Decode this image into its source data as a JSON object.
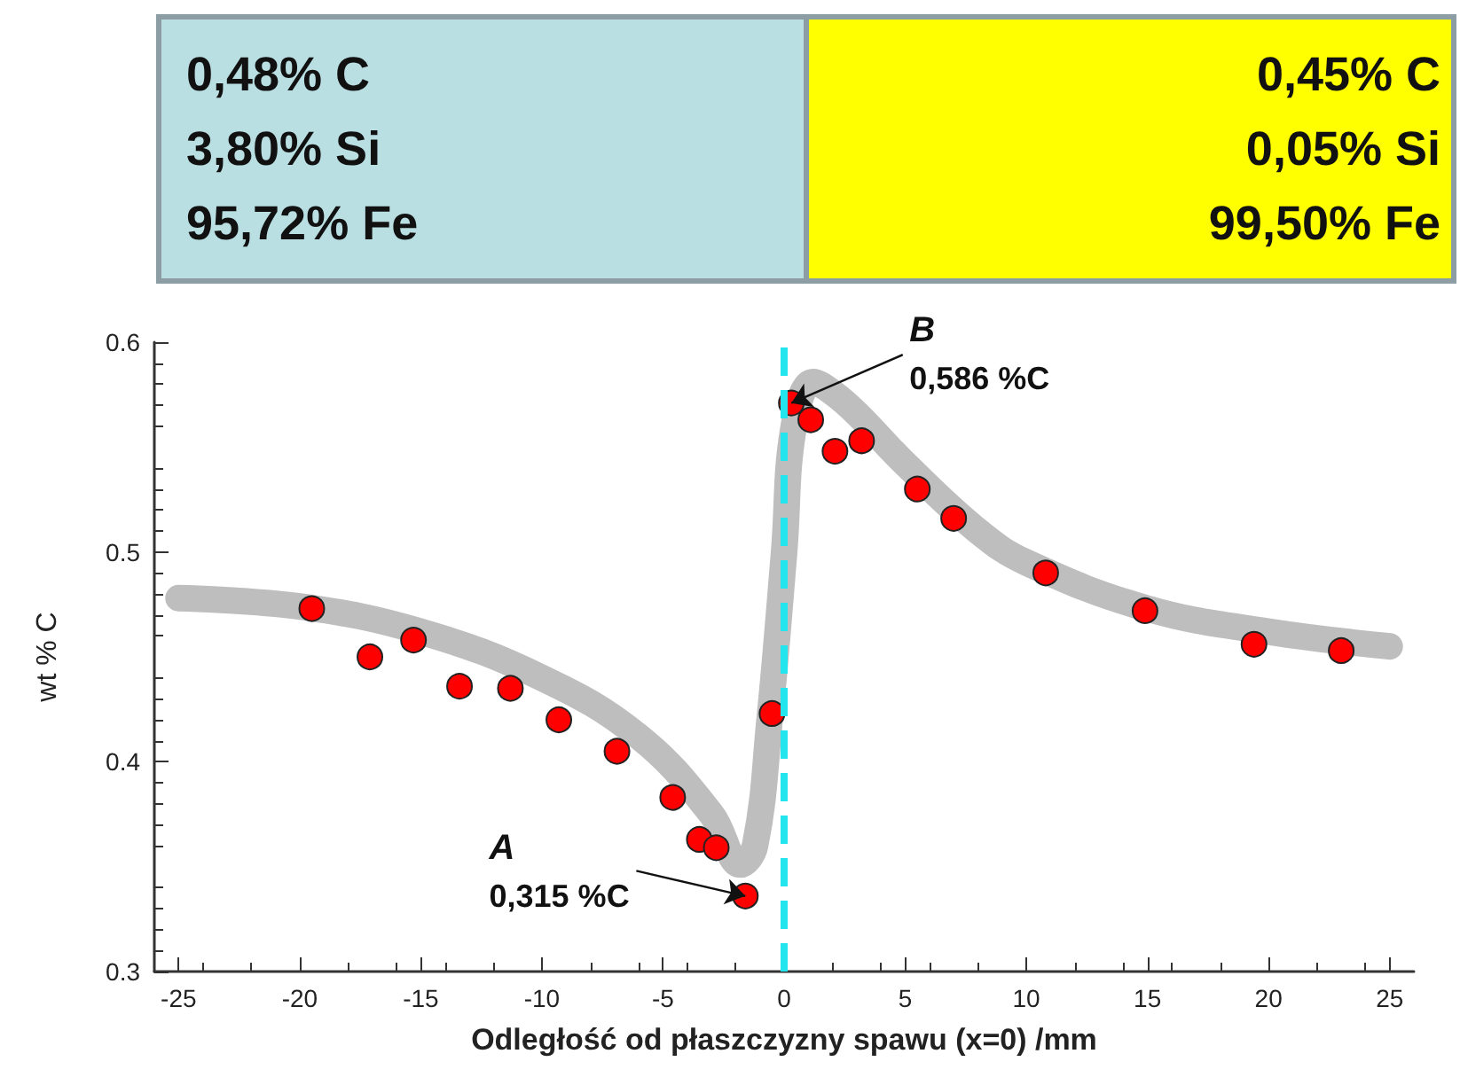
{
  "chart_data": [
    {
      "type": "other",
      "colors": [
        "#b9dfe3",
        "#ffff00"
      ],
      "annotations": [
        "0,48% C\n3,80% Si\n95,72% Fe",
        "0,45% C\n0,05% Si\n99,50% Fe"
      ]
    },
    {
      "type": "scatter",
      "xlabel": "Odległość od płaszczyzny spawu (x=0) /mm",
      "ylabel": "wt % C",
      "xlim": [
        -26,
        26
      ],
      "xticks": [
        -25,
        -20,
        -15,
        -10,
        -5,
        0,
        5,
        10,
        15,
        20,
        25
      ],
      "ylim": [
        0.3,
        0.6
      ],
      "yticks": [
        0.3,
        0.4,
        0.5,
        0.6
      ],
      "grid": false,
      "series": [
        {
          "type": "line",
          "color": "#bebebe",
          "marker": "none",
          "x": [
            -25,
            -20,
            -15,
            -10,
            -6,
            -3,
            -1.8,
            -1.2,
            -0.6,
            0,
            0.4,
            1.2,
            2,
            3,
            5,
            8,
            10,
            15,
            20,
            25
          ],
          "values": [
            0.478,
            0.474,
            0.462,
            0.44,
            0.412,
            0.375,
            0.351,
            0.36,
            0.42,
            0.5,
            0.56,
            0.581,
            0.576,
            0.566,
            0.542,
            0.51,
            0.495,
            0.473,
            0.462,
            0.455
          ]
        },
        {
          "type": "scatter",
          "color": "#ff0000",
          "marker": "circle",
          "x": [
            -19.5,
            -17.1,
            -15.3,
            -13.4,
            -11.3,
            -9.3,
            -6.9,
            -4.6,
            -3.5,
            -2.8,
            -1.6,
            -0.5,
            0.3,
            1.1,
            2.1,
            3.2,
            5.5,
            7,
            10.8,
            14.9,
            19.4,
            23
          ],
          "values": [
            0.473,
            0.45,
            0.458,
            0.436,
            0.435,
            0.42,
            0.405,
            0.383,
            0.363,
            0.359,
            0.336,
            0.423,
            0.571,
            0.563,
            0.548,
            0.553,
            0.53,
            0.516,
            0.49,
            0.472,
            0.456,
            0.453
          ]
        }
      ],
      "ref_lines": [
        {
          "axis": "x",
          "value": 0,
          "color": "#22e5ee",
          "line_style": "dashed"
        }
      ],
      "annotations": [
        {
          "text": "A\n0,315 %C",
          "x": -1.6,
          "y": 0.336
        },
        {
          "text": "B\n0,586 %C",
          "x": 0.3,
          "y": 0.571
        }
      ]
    }
  ]
}
